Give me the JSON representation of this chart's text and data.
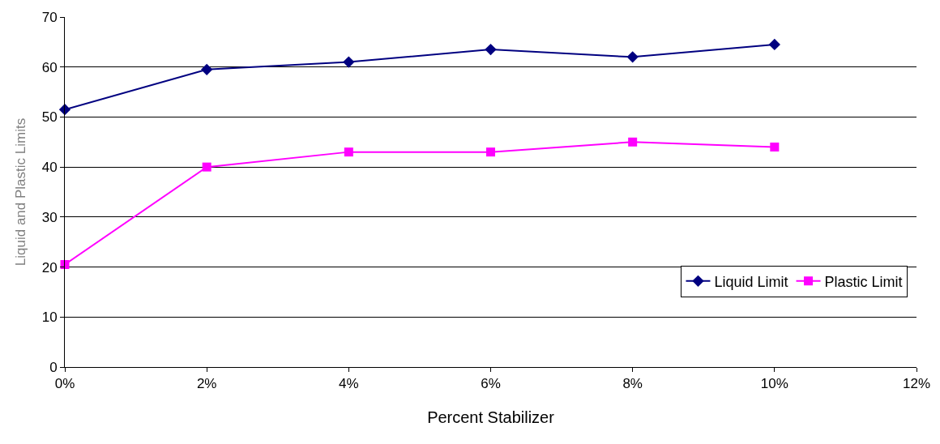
{
  "chart_data": {
    "type": "line",
    "xlabel": "Percent Stabilizer",
    "ylabel": "Liquid and Plastic Limits",
    "x": [
      0,
      2,
      4,
      6,
      8,
      10
    ],
    "series": [
      {
        "name": "Liquid Limit",
        "color": "#000080",
        "marker": "diamond",
        "values": [
          51.5,
          59.5,
          61,
          63.5,
          62,
          64.5
        ]
      },
      {
        "name": "Plastic Limit",
        "color": "#ff00ff",
        "marker": "square",
        "values": [
          20.5,
          40,
          43,
          43,
          45,
          44
        ]
      }
    ],
    "xlim": [
      0,
      12
    ],
    "xticks": [
      {
        "value": 0,
        "label": "0%"
      },
      {
        "value": 2,
        "label": "2%"
      },
      {
        "value": 4,
        "label": "4%"
      },
      {
        "value": 6,
        "label": "6%"
      },
      {
        "value": 8,
        "label": "8%"
      },
      {
        "value": 10,
        "label": "10%"
      },
      {
        "value": 12,
        "label": "12%"
      }
    ],
    "ylim": [
      0,
      70
    ],
    "yticks": [
      0,
      10,
      20,
      30,
      40,
      50,
      60,
      70
    ],
    "grid": "y",
    "legend": "bottom right",
    "line_style": "solid"
  }
}
